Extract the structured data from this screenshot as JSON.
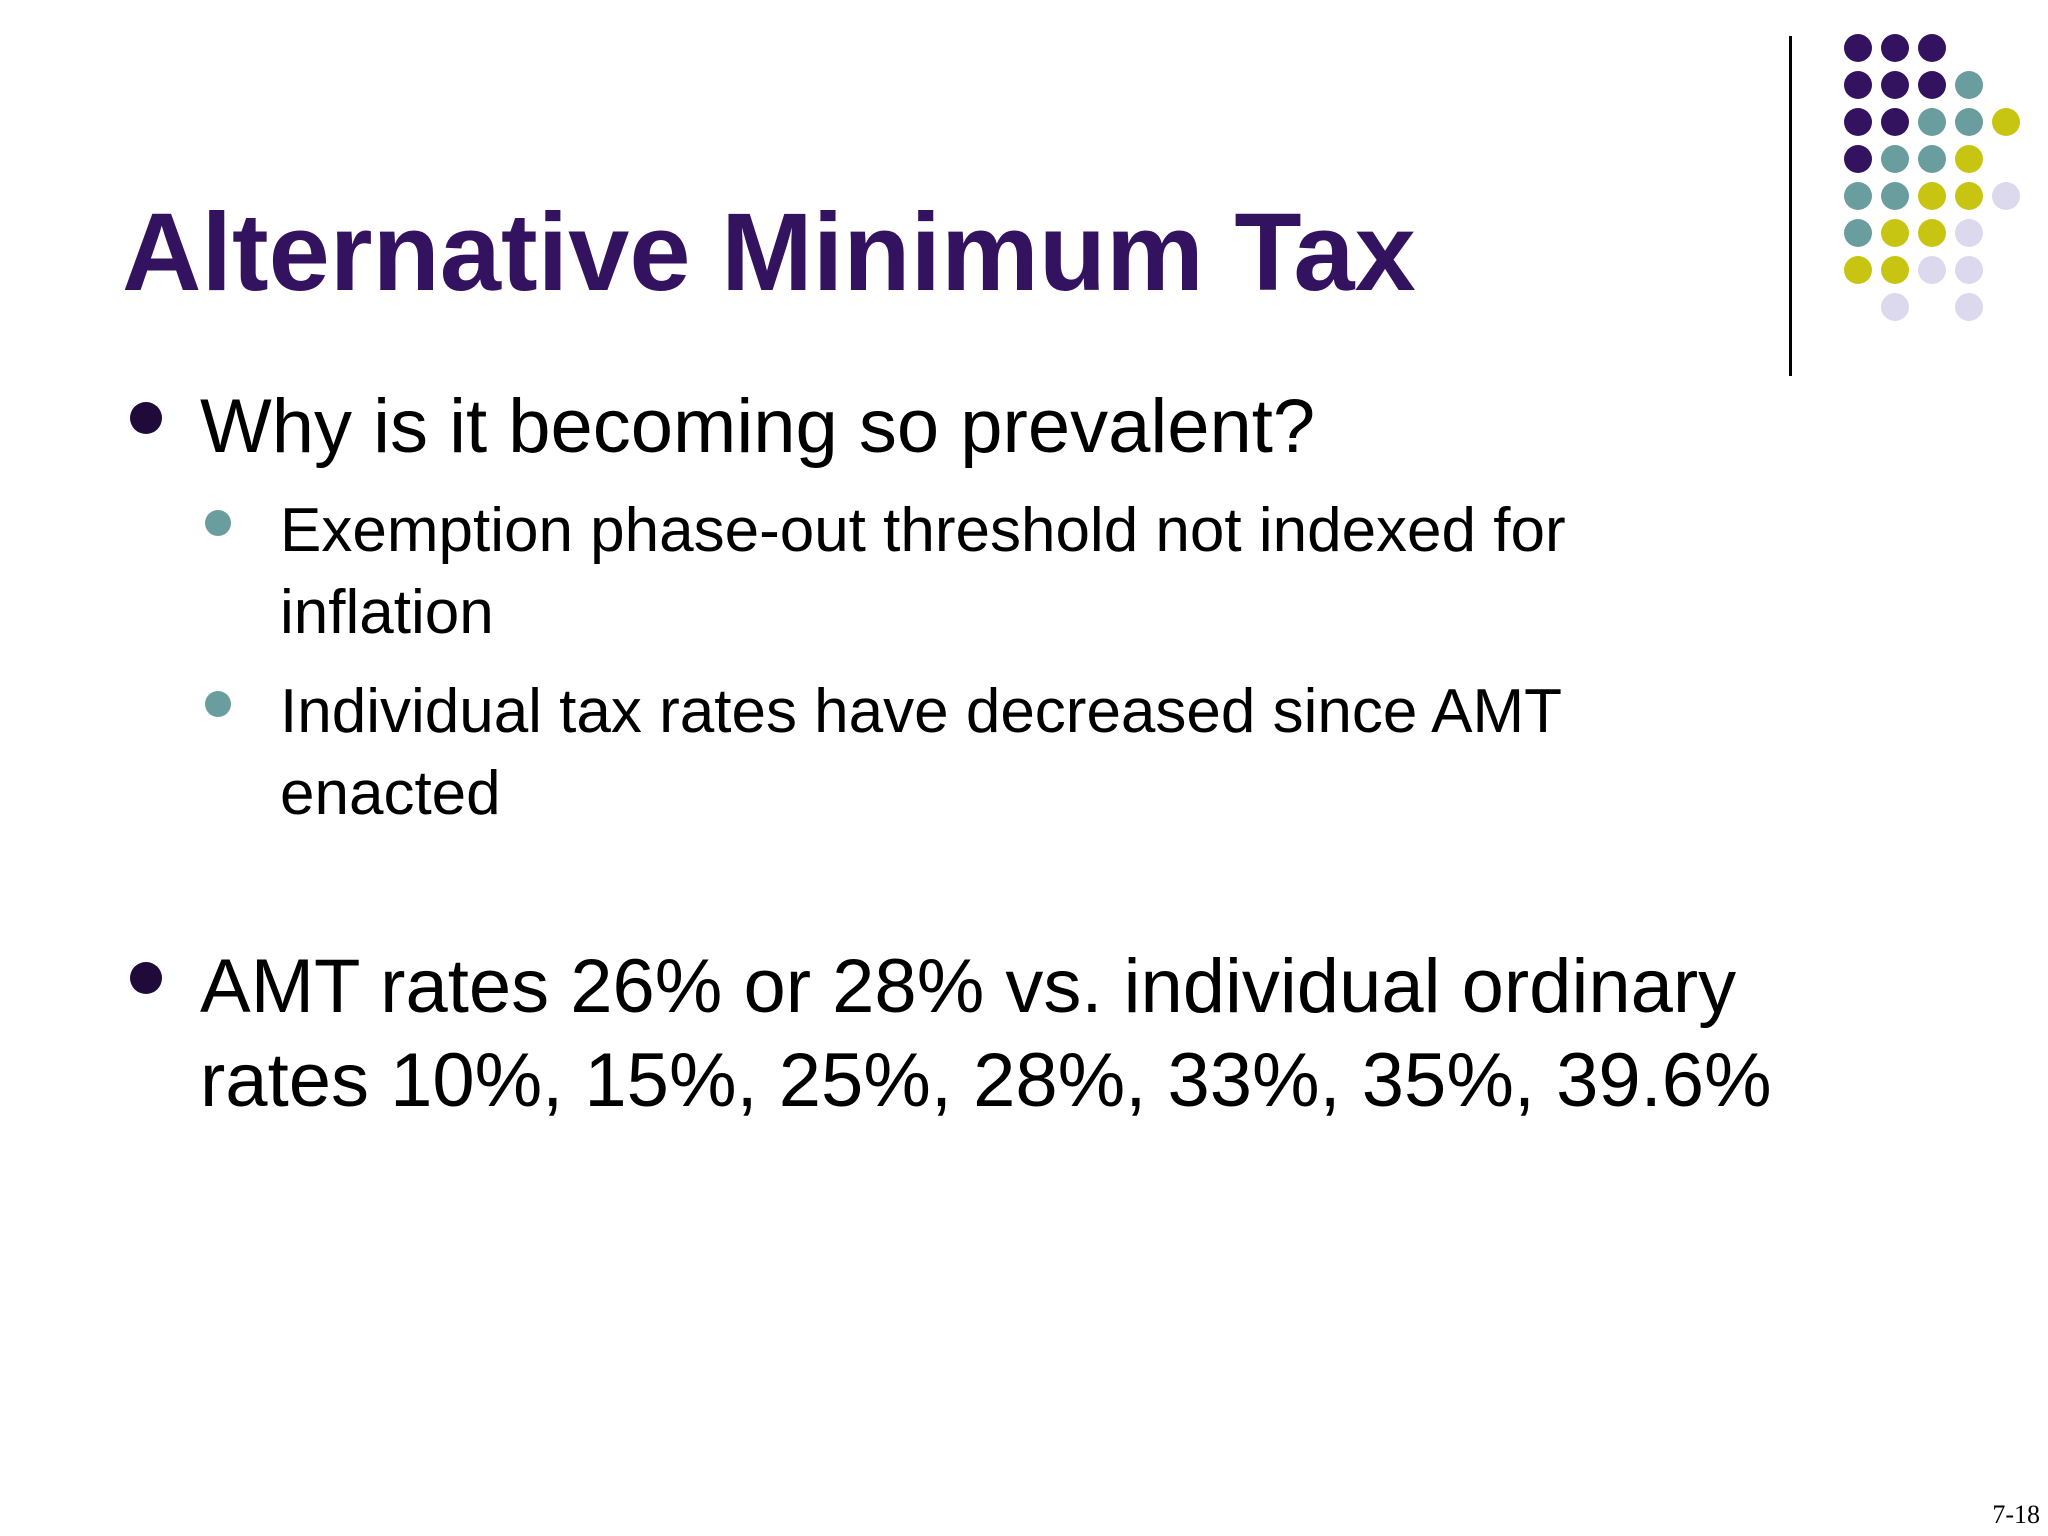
{
  "slide": {
    "title": "Alternative Minimum Tax",
    "bullets": [
      {
        "text": "Why is it becoming so prevalent?",
        "sub_bullets": [
          "Exemption phase-out threshold not indexed for inflation",
          "Individual tax rates have decreased since AMT enacted"
        ]
      },
      {
        "text": "AMT rates 26% or 28% vs. individual ordinary rates 10%, 15%, 25%, 28%, 33%, 35%, 39.6%",
        "sub_bullets": []
      }
    ],
    "slide_number": "7-18"
  },
  "colors": {
    "title": "#33135f",
    "text": "#000000",
    "dark_purple": "#33135f",
    "teal": "#6a9e9e",
    "olive": "#c7c512",
    "lavender": "#dcd9ee"
  }
}
